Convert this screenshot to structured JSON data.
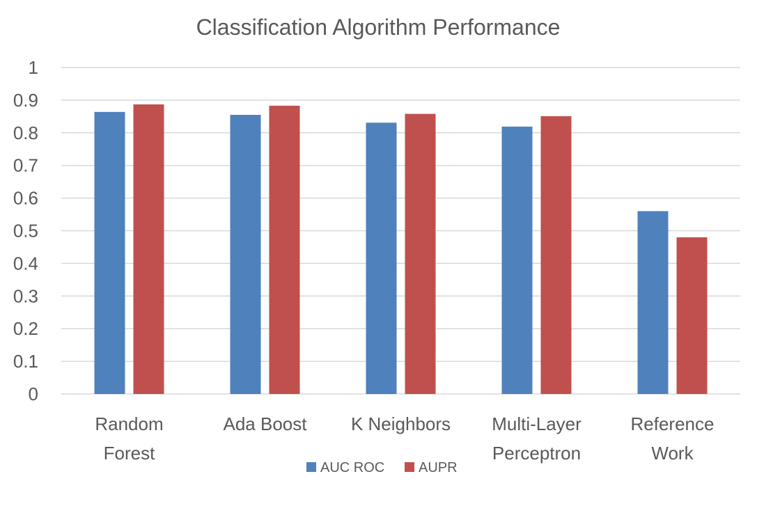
{
  "chart_data": {
    "type": "bar",
    "title": "Classification Algorithm Performance",
    "categories": [
      [
        "Random",
        "Forest"
      ],
      [
        "Ada Boost"
      ],
      [
        "K Neighbors"
      ],
      [
        "Multi-Layer",
        "Perceptron"
      ],
      [
        "Reference",
        "Work"
      ]
    ],
    "series": [
      {
        "name": "AUC ROC",
        "color": "#4f81bd",
        "values": [
          0.864,
          0.855,
          0.831,
          0.819,
          0.56
        ]
      },
      {
        "name": "AUPR",
        "color": "#c0504d",
        "values": [
          0.887,
          0.883,
          0.858,
          0.851,
          0.48
        ]
      }
    ],
    "ylim": [
      0,
      1
    ],
    "yticks": [
      "0",
      "0.1",
      "0.2",
      "0.3",
      "0.4",
      "0.5",
      "0.6",
      "0.7",
      "0.8",
      "0.9",
      "1"
    ],
    "grid": true,
    "legend": "bottom"
  }
}
